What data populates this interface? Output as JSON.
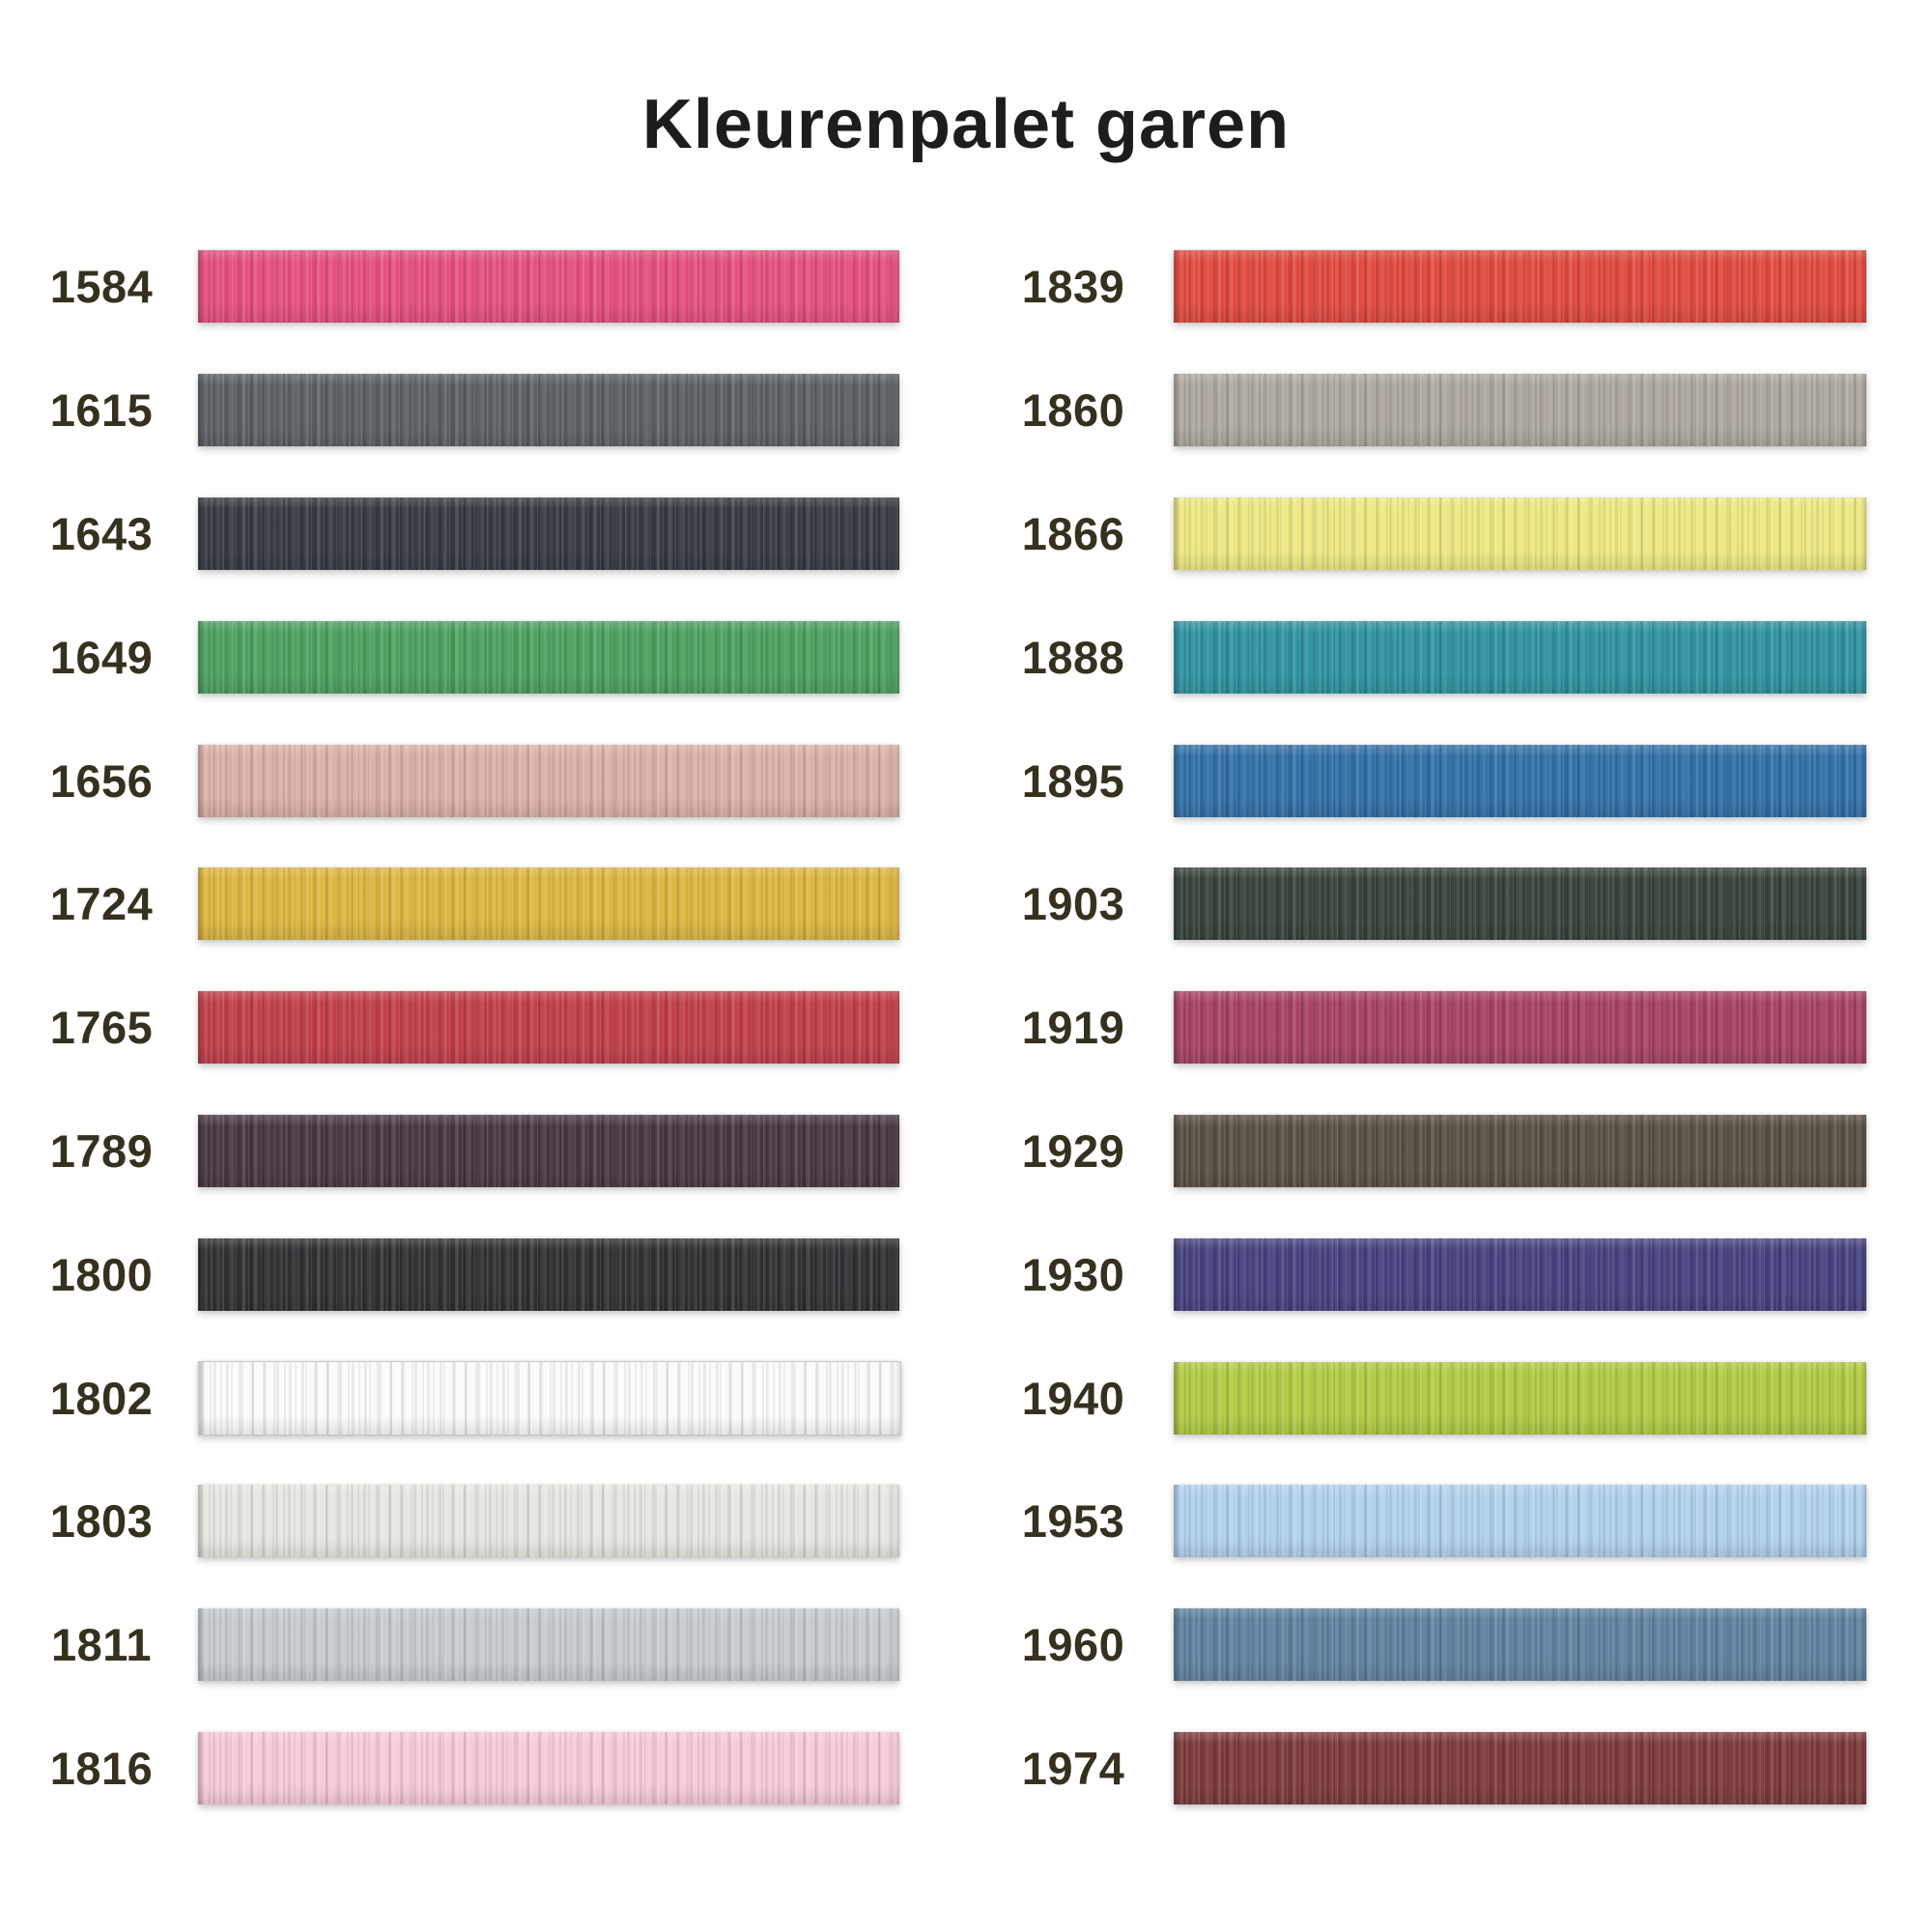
{
  "title": "Kleurenpalet garen",
  "title_color": "#1d1d1b",
  "label_color": "#35311f",
  "background_color": "#ffffff",
  "columns": [
    {
      "name": "left",
      "items": [
        {
          "code": "1584",
          "color": "#e5507d"
        },
        {
          "code": "1615",
          "color": "#5c6064"
        },
        {
          "code": "1643",
          "color": "#363b42"
        },
        {
          "code": "1649",
          "color": "#4da060"
        },
        {
          "code": "1656",
          "color": "#dbb0a6"
        },
        {
          "code": "1724",
          "color": "#ddb640"
        },
        {
          "code": "1765",
          "color": "#c03f4a"
        },
        {
          "code": "1789",
          "color": "#483742"
        },
        {
          "code": "1800",
          "color": "#323033"
        },
        {
          "code": "1802",
          "color": "#fbfbfb",
          "border": "#c9c9c9"
        },
        {
          "code": "1803",
          "color": "#e7e6e0"
        },
        {
          "code": "1811",
          "color": "#c6cbcf"
        },
        {
          "code": "1816",
          "color": "#f7c9d9"
        }
      ]
    },
    {
      "name": "right",
      "items": [
        {
          "code": "1839",
          "color": "#e04a40"
        },
        {
          "code": "1860",
          "color": "#aca79e"
        },
        {
          "code": "1866",
          "color": "#ede881"
        },
        {
          "code": "1888",
          "color": "#2f92a1"
        },
        {
          "code": "1895",
          "color": "#3270a7"
        },
        {
          "code": "1903",
          "color": "#38433c"
        },
        {
          "code": "1919",
          "color": "#a64262"
        },
        {
          "code": "1929",
          "color": "#594f45"
        },
        {
          "code": "1930",
          "color": "#464280"
        },
        {
          "code": "1940",
          "color": "#b1ca43"
        },
        {
          "code": "1953",
          "color": "#b1d1ed"
        },
        {
          "code": "1960",
          "color": "#60819f"
        },
        {
          "code": "1974",
          "color": "#7d3a3c"
        }
      ]
    }
  ]
}
